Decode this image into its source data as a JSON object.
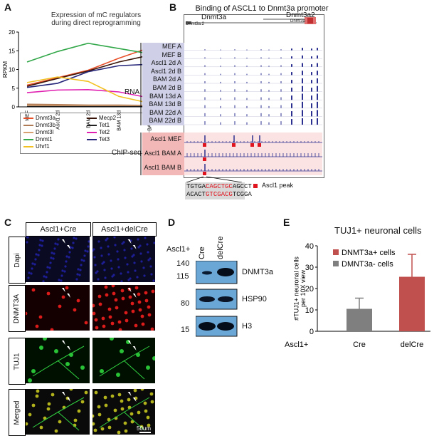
{
  "panel_letters": {
    "a": "A",
    "b": "B",
    "c": "C",
    "d": "D",
    "e": "E"
  },
  "panel_a": {
    "title_line1": "Expression of mC regulators",
    "title_line2": "during direct reprogramming",
    "ylabel": "RPKM",
    "legend": [
      "Dnmt3a",
      "Mecp2",
      "Dnmt3b",
      "Tet1",
      "Dnmt3l",
      "Tet2",
      "Dnmt1",
      "Tet3",
      "Uhrf1"
    ]
  },
  "panel_b": {
    "title": "Binding of ASCL1 to Dnmt3a promoter",
    "gene1": "Dnmt3a",
    "gene2": "Dnmt3a2",
    "small_gene_left": "Dnmt3a.2",
    "small_gene_right": "Dnmt3a",
    "rna_label": "RNA",
    "chip_label": "ChIP-seq",
    "rna_tracks": [
      "MEF A",
      "MEF B",
      "Ascl1 2d A",
      "Ascl1 2d B",
      "BAM 2d A",
      "BAM 2d B",
      "BAM 13d A",
      "BAM 13d B",
      "BAM 22d A",
      "BAM 22d B"
    ],
    "chip_tracks": [
      "Ascl1 MEF",
      "Ascl1 BAM A",
      "Ascl1 BAM B"
    ],
    "seq_line1_a": "TGTGA",
    "seq_line1_b": "CAGCTGC",
    "seq_line1_c": "AGCCT",
    "seq_line2_a": "ACACT",
    "seq_line2_b": "GTCGACG",
    "seq_line2_c": "TCGGA",
    "peak_legend": "Ascl1 peak",
    "colors": {
      "rna_bg": "#cfd0e8",
      "chip_bg": "#f2b8b8",
      "peak": "#e0141e",
      "signal": "#2b2f8f"
    }
  },
  "panel_c": {
    "col_headers": [
      "Ascl1+Cre",
      "Ascl1+delCre"
    ],
    "rows": [
      "Dapi",
      "DNMT3A",
      "TUJ1",
      "Merged"
    ],
    "scale": "50um"
  },
  "panel_d": {
    "header": "Ascl1+",
    "lanes": [
      "Cre",
      "delCre"
    ],
    "blots": [
      "DNMT3a",
      "HSP90",
      "H3"
    ],
    "markers": [
      "140",
      "115",
      "80",
      "15"
    ]
  },
  "chart_data": [
    {
      "type": "line",
      "title": "Expression of mC regulators during direct reprogramming",
      "xlabel": "",
      "ylabel": "RPKM",
      "categories": [
        "MEF",
        "Ascl1 2d",
        "BAM 2d",
        "BAM 13d",
        "BAM 22d"
      ],
      "ylim": [
        0,
        20
      ],
      "yticks": [
        0,
        5,
        10,
        15,
        20
      ],
      "grid": false,
      "legend_position": "bottom",
      "series": [
        {
          "name": "Dnmt3a",
          "color": "#e8502a",
          "values": [
            5.8,
            7.8,
            9.8,
            13.0,
            15.8
          ]
        },
        {
          "name": "Mecp2",
          "color": "#3a1408",
          "values": [
            5.5,
            7.6,
            9.6,
            12.0,
            13.8
          ]
        },
        {
          "name": "Dnmt3b",
          "color": "#b07a55",
          "values": [
            0.7,
            0.6,
            0.5,
            0.5,
            0.4
          ]
        },
        {
          "name": "Tet1",
          "color": "#222222",
          "values": [
            0.2,
            0.2,
            0.2,
            0.2,
            0.2
          ]
        },
        {
          "name": "Dnmt3l",
          "color": "#d8a070",
          "values": [
            0.4,
            0.4,
            0.4,
            0.4,
            0.4
          ]
        },
        {
          "name": "Tet2",
          "color": "#e020b0",
          "values": [
            3.8,
            4.5,
            4.6,
            4.0,
            2.4
          ]
        },
        {
          "name": "Dnmt1",
          "color": "#33a84a",
          "values": [
            12.0,
            14.8,
            17.0,
            15.6,
            14.2
          ]
        },
        {
          "name": "Tet3",
          "color": "#25257a",
          "values": [
            5.2,
            6.3,
            9.4,
            11.0,
            11.4
          ]
        },
        {
          "name": "Uhrf1",
          "color": "#f2c020",
          "values": [
            6.5,
            8.0,
            6.8,
            2.8,
            1.0
          ]
        }
      ]
    },
    {
      "type": "bar",
      "title": "TUJ1+ neuronal cells",
      "xlabel": "Ascl1+",
      "ylabel": "#TUJ1+ neuronal cells per 10X view",
      "categories": [
        "Cre",
        "delCre"
      ],
      "ylim": [
        0,
        40
      ],
      "yticks": [
        0,
        10,
        20,
        30,
        40
      ],
      "grid": false,
      "legend_position": "top-left",
      "legend": [
        {
          "name": "DNMT3a+ cells",
          "color": "#c0504d"
        },
        {
          "name": "DMNT3a- cells",
          "color": "#7f7f7f"
        }
      ],
      "values": [
        10.5,
        25.5
      ],
      "errors": [
        5.0,
        10.5
      ],
      "colors": [
        "#7f7f7f",
        "#c0504d"
      ]
    }
  ]
}
